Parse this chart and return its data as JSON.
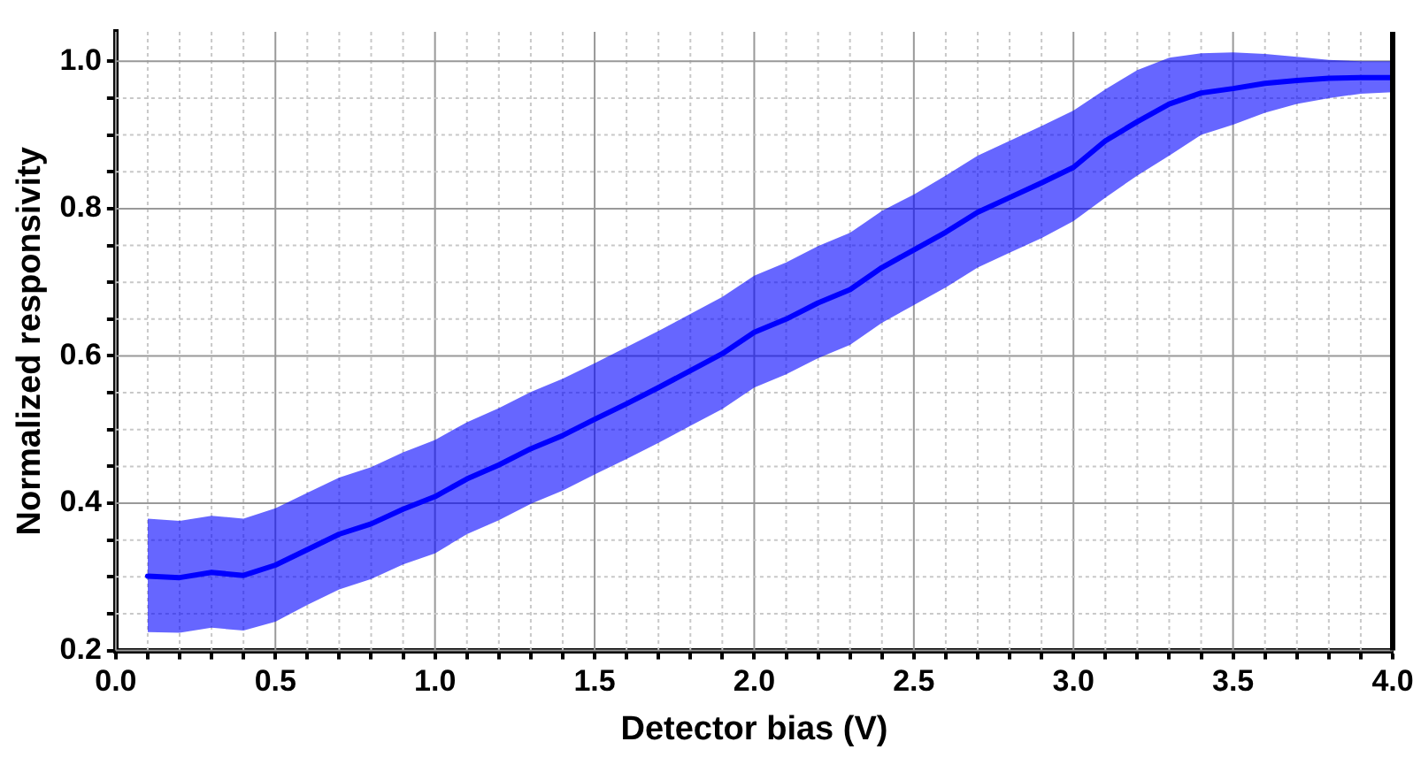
{
  "chart_data": {
    "type": "line",
    "xlabel": "Detector bias (V)",
    "ylabel": "Normalized responsivity",
    "x": [
      0.1,
      0.2,
      0.3,
      0.4,
      0.5,
      0.6,
      0.7,
      0.8,
      0.9,
      1.0,
      1.1,
      1.2,
      1.3,
      1.4,
      1.5,
      1.6,
      1.7,
      1.8,
      1.9,
      2.0,
      2.1,
      2.2,
      2.3,
      2.4,
      2.5,
      2.6,
      2.7,
      2.8,
      2.9,
      3.0,
      3.1,
      3.2,
      3.3,
      3.4,
      3.5,
      3.6,
      3.7,
      3.8,
      3.9,
      4.0
    ],
    "series": [
      {
        "color": "#0000ff",
        "values": [
          0.301,
          0.299,
          0.306,
          0.302,
          0.316,
          0.337,
          0.358,
          0.372,
          0.392,
          0.409,
          0.433,
          0.452,
          0.474,
          0.492,
          0.514,
          0.535,
          0.557,
          0.58,
          0.603,
          0.632,
          0.65,
          0.672,
          0.69,
          0.72,
          0.744,
          0.768,
          0.795,
          0.815,
          0.835,
          0.856,
          0.892,
          0.918,
          0.942,
          0.957,
          0.963,
          0.97,
          0.974,
          0.977,
          0.978,
          0.978
        ],
        "upper": [
          0.379,
          0.376,
          0.383,
          0.379,
          0.393,
          0.414,
          0.435,
          0.449,
          0.469,
          0.486,
          0.51,
          0.529,
          0.551,
          0.569,
          0.59,
          0.612,
          0.634,
          0.657,
          0.68,
          0.709,
          0.727,
          0.749,
          0.767,
          0.797,
          0.819,
          0.845,
          0.872,
          0.892,
          0.912,
          0.933,
          0.962,
          0.988,
          1.005,
          1.011,
          1.012,
          1.01,
          1.006,
          1.002,
          1.0,
          1.0
        ],
        "lower": [
          0.225,
          0.224,
          0.231,
          0.227,
          0.239,
          0.262,
          0.283,
          0.297,
          0.317,
          0.332,
          0.358,
          0.377,
          0.399,
          0.417,
          0.439,
          0.46,
          0.482,
          0.505,
          0.528,
          0.557,
          0.575,
          0.597,
          0.615,
          0.645,
          0.669,
          0.693,
          0.72,
          0.74,
          0.76,
          0.783,
          0.815,
          0.845,
          0.872,
          0.9,
          0.914,
          0.93,
          0.942,
          0.95,
          0.956,
          0.958
        ]
      }
    ],
    "xlim": [
      0,
      4
    ],
    "xticks": [
      {
        "value": 0,
        "label": "0.0"
      },
      {
        "value": 0.1,
        "label": null
      },
      {
        "value": 0.2,
        "label": null
      },
      {
        "value": 0.3,
        "label": null
      },
      {
        "value": 0.4,
        "label": null
      },
      0.5,
      {
        "value": 0.6,
        "label": null
      },
      {
        "value": 0.7,
        "label": null
      },
      {
        "value": 0.8,
        "label": null
      },
      {
        "value": 0.9,
        "label": null
      },
      {
        "value": 1,
        "label": "1.0"
      },
      {
        "value": 1.1,
        "label": null
      },
      {
        "value": 1.2,
        "label": null
      },
      {
        "value": 1.3,
        "label": null
      },
      {
        "value": 1.4,
        "label": null
      },
      1.5,
      {
        "value": 1.6,
        "label": null
      },
      {
        "value": 1.7,
        "label": null
      },
      {
        "value": 1.8,
        "label": null
      },
      {
        "value": 1.9,
        "label": null
      },
      {
        "value": 2,
        "label": "2.0"
      },
      {
        "value": 2.1,
        "label": null
      },
      {
        "value": 2.2,
        "label": null
      },
      {
        "value": 2.3,
        "label": null
      },
      {
        "value": 2.4,
        "label": null
      },
      2.5,
      {
        "value": 2.6,
        "label": null
      },
      {
        "value": 2.7,
        "label": null
      },
      {
        "value": 2.8,
        "label": null
      },
      {
        "value": 2.9,
        "label": null
      },
      {
        "value": 3,
        "label": "3.0"
      },
      {
        "value": 3.1,
        "label": null
      },
      {
        "value": 3.2,
        "label": null
      },
      {
        "value": 3.3,
        "label": null
      },
      {
        "value": 3.4,
        "label": null
      },
      3.5,
      {
        "value": 3.6,
        "label": null
      },
      {
        "value": 3.7,
        "label": null
      },
      {
        "value": 3.8,
        "label": null
      },
      {
        "value": 3.9,
        "label": null
      },
      {
        "value": 4,
        "label": "4.0"
      }
    ],
    "ylim": [
      0.2,
      1.04
    ],
    "yticks": [
      0.2,
      {
        "value": 0.25,
        "label": null
      },
      {
        "value": 0.3,
        "label": null
      },
      {
        "value": 0.35,
        "label": null
      },
      0.4,
      {
        "value": 0.45,
        "label": null
      },
      {
        "value": 0.5,
        "label": null
      },
      {
        "value": 0.55,
        "label": null
      },
      0.6,
      {
        "value": 0.65,
        "label": null
      },
      {
        "value": 0.7,
        "label": null
      },
      {
        "value": 0.75,
        "label": null
      },
      0.8,
      {
        "value": 0.85,
        "label": null
      },
      {
        "value": 0.9,
        "label": null
      },
      {
        "value": 0.95,
        "label": null
      },
      {
        "value": 1,
        "label": "1.0"
      }
    ],
    "grid": true,
    "legend": false,
    "marker": "none",
    "line_style": "solid"
  }
}
